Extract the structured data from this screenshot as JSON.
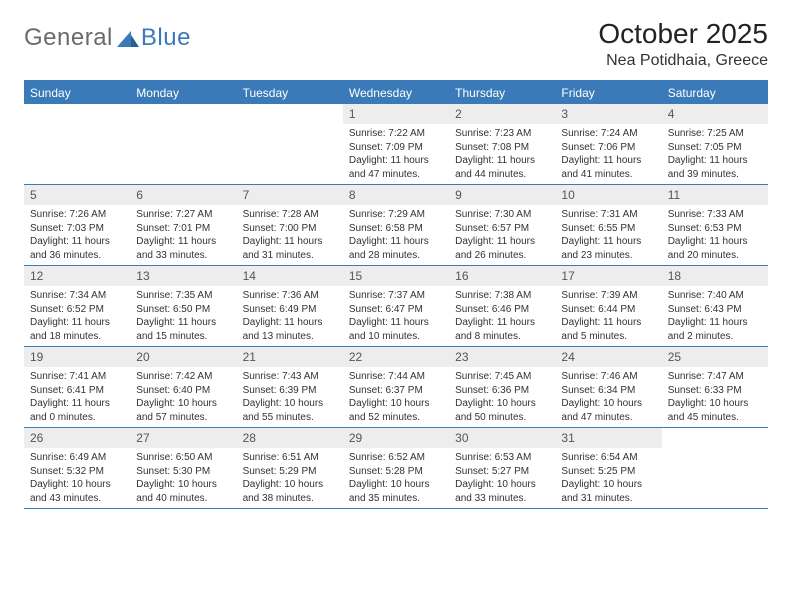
{
  "logo": {
    "text1": "General",
    "text2": "Blue"
  },
  "title": "October 2025",
  "location": "Nea Potidhaia, Greece",
  "colors": {
    "header_bar": "#3a7ab8",
    "date_row_bg": "#ededed",
    "text": "#333333",
    "logo_gray": "#6a6a6a",
    "background": "#ffffff"
  },
  "fonts": {
    "title_size": 28,
    "location_size": 16,
    "dayhead_size": 12,
    "date_size": 12,
    "info_size": 10
  },
  "dayNames": [
    "Sunday",
    "Monday",
    "Tuesday",
    "Wednesday",
    "Thursday",
    "Friday",
    "Saturday"
  ],
  "weeks": [
    [
      {
        "date": "",
        "sunrise": "",
        "sunset": "",
        "daylight": ""
      },
      {
        "date": "",
        "sunrise": "",
        "sunset": "",
        "daylight": ""
      },
      {
        "date": "",
        "sunrise": "",
        "sunset": "",
        "daylight": ""
      },
      {
        "date": "1",
        "sunrise": "Sunrise: 7:22 AM",
        "sunset": "Sunset: 7:09 PM",
        "daylight": "Daylight: 11 hours and 47 minutes."
      },
      {
        "date": "2",
        "sunrise": "Sunrise: 7:23 AM",
        "sunset": "Sunset: 7:08 PM",
        "daylight": "Daylight: 11 hours and 44 minutes."
      },
      {
        "date": "3",
        "sunrise": "Sunrise: 7:24 AM",
        "sunset": "Sunset: 7:06 PM",
        "daylight": "Daylight: 11 hours and 41 minutes."
      },
      {
        "date": "4",
        "sunrise": "Sunrise: 7:25 AM",
        "sunset": "Sunset: 7:05 PM",
        "daylight": "Daylight: 11 hours and 39 minutes."
      }
    ],
    [
      {
        "date": "5",
        "sunrise": "Sunrise: 7:26 AM",
        "sunset": "Sunset: 7:03 PM",
        "daylight": "Daylight: 11 hours and 36 minutes."
      },
      {
        "date": "6",
        "sunrise": "Sunrise: 7:27 AM",
        "sunset": "Sunset: 7:01 PM",
        "daylight": "Daylight: 11 hours and 33 minutes."
      },
      {
        "date": "7",
        "sunrise": "Sunrise: 7:28 AM",
        "sunset": "Sunset: 7:00 PM",
        "daylight": "Daylight: 11 hours and 31 minutes."
      },
      {
        "date": "8",
        "sunrise": "Sunrise: 7:29 AM",
        "sunset": "Sunset: 6:58 PM",
        "daylight": "Daylight: 11 hours and 28 minutes."
      },
      {
        "date": "9",
        "sunrise": "Sunrise: 7:30 AM",
        "sunset": "Sunset: 6:57 PM",
        "daylight": "Daylight: 11 hours and 26 minutes."
      },
      {
        "date": "10",
        "sunrise": "Sunrise: 7:31 AM",
        "sunset": "Sunset: 6:55 PM",
        "daylight": "Daylight: 11 hours and 23 minutes."
      },
      {
        "date": "11",
        "sunrise": "Sunrise: 7:33 AM",
        "sunset": "Sunset: 6:53 PM",
        "daylight": "Daylight: 11 hours and 20 minutes."
      }
    ],
    [
      {
        "date": "12",
        "sunrise": "Sunrise: 7:34 AM",
        "sunset": "Sunset: 6:52 PM",
        "daylight": "Daylight: 11 hours and 18 minutes."
      },
      {
        "date": "13",
        "sunrise": "Sunrise: 7:35 AM",
        "sunset": "Sunset: 6:50 PM",
        "daylight": "Daylight: 11 hours and 15 minutes."
      },
      {
        "date": "14",
        "sunrise": "Sunrise: 7:36 AM",
        "sunset": "Sunset: 6:49 PM",
        "daylight": "Daylight: 11 hours and 13 minutes."
      },
      {
        "date": "15",
        "sunrise": "Sunrise: 7:37 AM",
        "sunset": "Sunset: 6:47 PM",
        "daylight": "Daylight: 11 hours and 10 minutes."
      },
      {
        "date": "16",
        "sunrise": "Sunrise: 7:38 AM",
        "sunset": "Sunset: 6:46 PM",
        "daylight": "Daylight: 11 hours and 8 minutes."
      },
      {
        "date": "17",
        "sunrise": "Sunrise: 7:39 AM",
        "sunset": "Sunset: 6:44 PM",
        "daylight": "Daylight: 11 hours and 5 minutes."
      },
      {
        "date": "18",
        "sunrise": "Sunrise: 7:40 AM",
        "sunset": "Sunset: 6:43 PM",
        "daylight": "Daylight: 11 hours and 2 minutes."
      }
    ],
    [
      {
        "date": "19",
        "sunrise": "Sunrise: 7:41 AM",
        "sunset": "Sunset: 6:41 PM",
        "daylight": "Daylight: 11 hours and 0 minutes."
      },
      {
        "date": "20",
        "sunrise": "Sunrise: 7:42 AM",
        "sunset": "Sunset: 6:40 PM",
        "daylight": "Daylight: 10 hours and 57 minutes."
      },
      {
        "date": "21",
        "sunrise": "Sunrise: 7:43 AM",
        "sunset": "Sunset: 6:39 PM",
        "daylight": "Daylight: 10 hours and 55 minutes."
      },
      {
        "date": "22",
        "sunrise": "Sunrise: 7:44 AM",
        "sunset": "Sunset: 6:37 PM",
        "daylight": "Daylight: 10 hours and 52 minutes."
      },
      {
        "date": "23",
        "sunrise": "Sunrise: 7:45 AM",
        "sunset": "Sunset: 6:36 PM",
        "daylight": "Daylight: 10 hours and 50 minutes."
      },
      {
        "date": "24",
        "sunrise": "Sunrise: 7:46 AM",
        "sunset": "Sunset: 6:34 PM",
        "daylight": "Daylight: 10 hours and 47 minutes."
      },
      {
        "date": "25",
        "sunrise": "Sunrise: 7:47 AM",
        "sunset": "Sunset: 6:33 PM",
        "daylight": "Daylight: 10 hours and 45 minutes."
      }
    ],
    [
      {
        "date": "26",
        "sunrise": "Sunrise: 6:49 AM",
        "sunset": "Sunset: 5:32 PM",
        "daylight": "Daylight: 10 hours and 43 minutes."
      },
      {
        "date": "27",
        "sunrise": "Sunrise: 6:50 AM",
        "sunset": "Sunset: 5:30 PM",
        "daylight": "Daylight: 10 hours and 40 minutes."
      },
      {
        "date": "28",
        "sunrise": "Sunrise: 6:51 AM",
        "sunset": "Sunset: 5:29 PM",
        "daylight": "Daylight: 10 hours and 38 minutes."
      },
      {
        "date": "29",
        "sunrise": "Sunrise: 6:52 AM",
        "sunset": "Sunset: 5:28 PM",
        "daylight": "Daylight: 10 hours and 35 minutes."
      },
      {
        "date": "30",
        "sunrise": "Sunrise: 6:53 AM",
        "sunset": "Sunset: 5:27 PM",
        "daylight": "Daylight: 10 hours and 33 minutes."
      },
      {
        "date": "31",
        "sunrise": "Sunrise: 6:54 AM",
        "sunset": "Sunset: 5:25 PM",
        "daylight": "Daylight: 10 hours and 31 minutes."
      },
      {
        "date": "",
        "sunrise": "",
        "sunset": "",
        "daylight": ""
      }
    ]
  ]
}
